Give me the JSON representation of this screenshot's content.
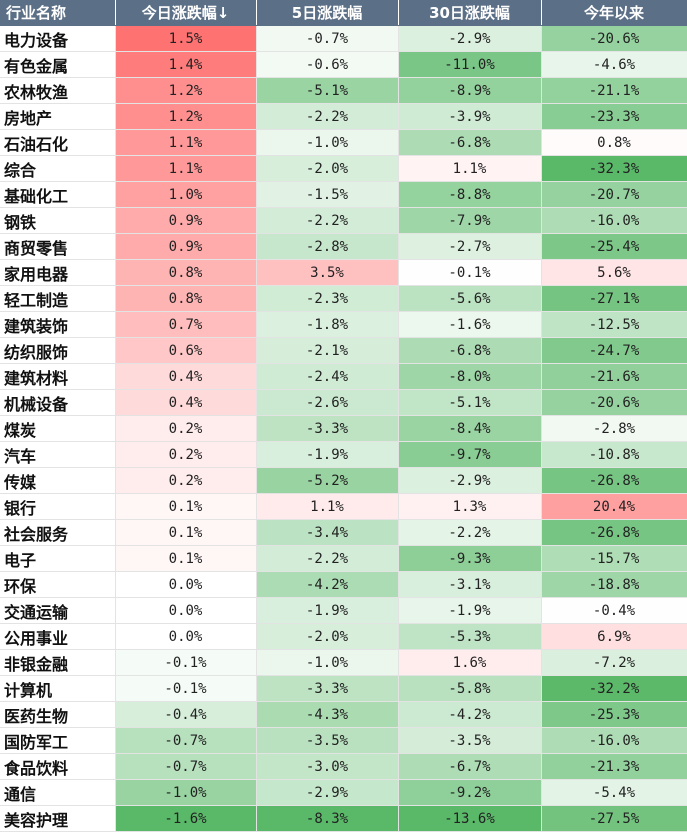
{
  "chart_data": {
    "type": "table",
    "columns": [
      "行业名称",
      "今日涨跌幅↓",
      "5日涨跌幅",
      "30日涨跌幅",
      "今年以来"
    ],
    "rows": [
      {
        "name": "电力设备",
        "values": [
          "1.5%",
          "-0.7%",
          "-2.9%",
          "-20.6%"
        ]
      },
      {
        "name": "有色金属",
        "values": [
          "1.4%",
          "-0.6%",
          "-11.0%",
          "-4.6%"
        ]
      },
      {
        "name": "农林牧渔",
        "values": [
          "1.2%",
          "-5.1%",
          "-8.9%",
          "-21.1%"
        ]
      },
      {
        "name": "房地产",
        "values": [
          "1.2%",
          "-2.2%",
          "-3.9%",
          "-23.3%"
        ]
      },
      {
        "name": "石油石化",
        "values": [
          "1.1%",
          "-1.0%",
          "-6.8%",
          "0.8%"
        ]
      },
      {
        "name": "综合",
        "values": [
          "1.1%",
          "-2.0%",
          "1.1%",
          "-32.3%"
        ]
      },
      {
        "name": "基础化工",
        "values": [
          "1.0%",
          "-1.5%",
          "-8.8%",
          "-20.7%"
        ]
      },
      {
        "name": "钢铁",
        "values": [
          "0.9%",
          "-2.2%",
          "-7.9%",
          "-16.0%"
        ]
      },
      {
        "name": "商贸零售",
        "values": [
          "0.9%",
          "-2.8%",
          "-2.7%",
          "-25.4%"
        ]
      },
      {
        "name": "家用电器",
        "values": [
          "0.8%",
          "3.5%",
          "-0.1%",
          "5.6%"
        ]
      },
      {
        "name": "轻工制造",
        "values": [
          "0.8%",
          "-2.3%",
          "-5.6%",
          "-27.1%"
        ]
      },
      {
        "name": "建筑装饰",
        "values": [
          "0.7%",
          "-1.8%",
          "-1.6%",
          "-12.5%"
        ]
      },
      {
        "name": "纺织服饰",
        "values": [
          "0.6%",
          "-2.1%",
          "-6.8%",
          "-24.7%"
        ]
      },
      {
        "name": "建筑材料",
        "values": [
          "0.4%",
          "-2.4%",
          "-8.0%",
          "-21.6%"
        ]
      },
      {
        "name": "机械设备",
        "values": [
          "0.4%",
          "-2.6%",
          "-5.1%",
          "-20.6%"
        ]
      },
      {
        "name": "煤炭",
        "values": [
          "0.2%",
          "-3.3%",
          "-8.4%",
          "-2.8%"
        ]
      },
      {
        "name": "汽车",
        "values": [
          "0.2%",
          "-1.9%",
          "-9.7%",
          "-10.8%"
        ]
      },
      {
        "name": "传媒",
        "values": [
          "0.2%",
          "-5.2%",
          "-2.9%",
          "-26.8%"
        ]
      },
      {
        "name": "银行",
        "values": [
          "0.1%",
          "1.1%",
          "1.3%",
          "20.4%"
        ]
      },
      {
        "name": "社会服务",
        "values": [
          "0.1%",
          "-3.4%",
          "-2.2%",
          "-26.8%"
        ]
      },
      {
        "name": "电子",
        "values": [
          "0.1%",
          "-2.2%",
          "-9.3%",
          "-15.7%"
        ]
      },
      {
        "name": "环保",
        "values": [
          "0.0%",
          "-4.2%",
          "-3.1%",
          "-18.8%"
        ]
      },
      {
        "name": "交通运输",
        "values": [
          "0.0%",
          "-1.9%",
          "-1.9%",
          "-0.4%"
        ]
      },
      {
        "name": "公用事业",
        "values": [
          "0.0%",
          "-2.0%",
          "-5.3%",
          "6.9%"
        ]
      },
      {
        "name": "非银金融",
        "values": [
          "-0.1%",
          "-1.0%",
          "1.6%",
          "-7.2%"
        ]
      },
      {
        "name": "计算机",
        "values": [
          "-0.1%",
          "-3.3%",
          "-5.8%",
          "-32.2%"
        ]
      },
      {
        "name": "医药生物",
        "values": [
          "-0.4%",
          "-4.3%",
          "-4.2%",
          "-25.3%"
        ]
      },
      {
        "name": "国防军工",
        "values": [
          "-0.7%",
          "-3.5%",
          "-3.5%",
          "-16.0%"
        ]
      },
      {
        "name": "食品饮料",
        "values": [
          "-0.7%",
          "-3.0%",
          "-6.7%",
          "-21.3%"
        ]
      },
      {
        "name": "通信",
        "values": [
          "-1.0%",
          "-2.9%",
          "-9.2%",
          "-5.4%"
        ]
      },
      {
        "name": "美容护理",
        "values": [
          "-1.6%",
          "-8.3%",
          "-13.6%",
          "-27.5%"
        ]
      }
    ],
    "colors": {
      "header_bg": "#5b6f86",
      "positive": "#f08080",
      "negative": "#5cb870",
      "strong_positive": "#f26060"
    }
  }
}
